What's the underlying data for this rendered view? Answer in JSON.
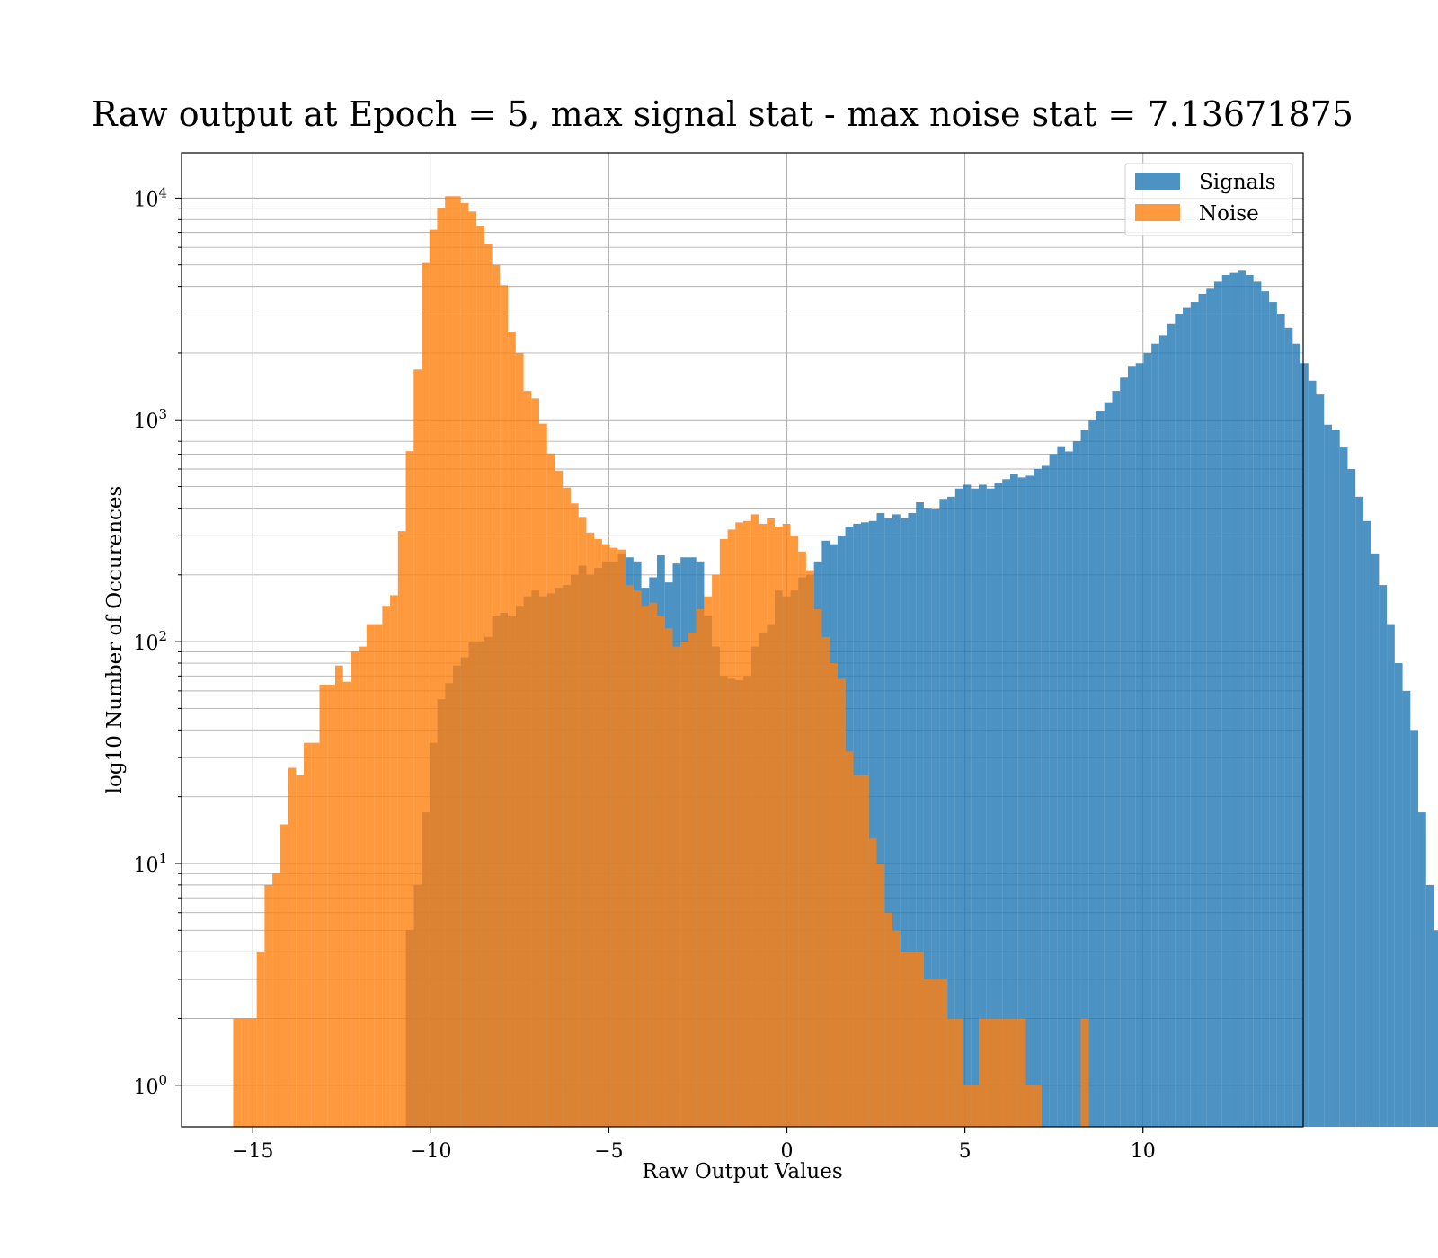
{
  "chart_data": {
    "type": "bar",
    "title": "Raw output at Epoch = 5, max signal stat - max noise stat = 7.13671875",
    "xlabel": "Raw Output Values",
    "ylabel": "log10 Number of Occurences",
    "xlim": [
      -17,
      14.5
    ],
    "ylim": [
      0.65,
      16000
    ],
    "yscale": "log",
    "grid": true,
    "legend_position": "top-right",
    "xticks": [
      "−15",
      "−10",
      "−5",
      "0",
      "5",
      "10"
    ],
    "xtick_values": [
      -15,
      -10,
      -5,
      0,
      5,
      10
    ],
    "yticks": [
      {
        "base": "10",
        "exp": "0",
        "value": 1
      },
      {
        "base": "10",
        "exp": "1",
        "value": 10
      },
      {
        "base": "10",
        "exp": "2",
        "value": 100
      },
      {
        "base": "10",
        "exp": "3",
        "value": 1000
      },
      {
        "base": "10",
        "exp": "4",
        "value": 10000
      }
    ],
    "series": [
      {
        "name": "Signals",
        "color": "#1f77b4",
        "opacity": 0.8,
        "bin_start": -10.7,
        "bin_width": 0.2204,
        "values": [
          5,
          8,
          17,
          35,
          55,
          65,
          78,
          85,
          100,
          100,
          105,
          130,
          135,
          130,
          145,
          160,
          170,
          160,
          165,
          175,
          180,
          200,
          220,
          200,
          215,
          230,
          230,
          250,
          240,
          230,
          175,
          195,
          245,
          185,
          225,
          240,
          240,
          230,
          130,
          95,
          70,
          68,
          67,
          70,
          95,
          110,
          120,
          170,
          160,
          170,
          195,
          200,
          230,
          285,
          275,
          300,
          330,
          340,
          345,
          350,
          380,
          360,
          375,
          360,
          380,
          425,
          400,
          395,
          440,
          450,
          490,
          510,
          490,
          510,
          490,
          520,
          540,
          570,
          550,
          560,
          600,
          620,
          700,
          760,
          720,
          800,
          900,
          1000,
          1100,
          1200,
          1350,
          1550,
          1750,
          1800,
          2000,
          2200,
          2400,
          2700,
          3000,
          3200,
          3400,
          3700,
          3900,
          4200,
          4500,
          4600,
          4700,
          4500,
          4200,
          3800,
          3400,
          3000,
          2600,
          2200,
          1800,
          1500,
          1300,
          950,
          900,
          750,
          600,
          450,
          350,
          250,
          180,
          120,
          80,
          60,
          40,
          17,
          8,
          5,
          3
        ]
      },
      {
        "name": "Noise",
        "color": "#ff7f0e",
        "opacity": 0.8,
        "bin_start": -15.55,
        "bin_width": 0.2204,
        "values": [
          2,
          2,
          2,
          4,
          8,
          9,
          15,
          27,
          25,
          35,
          35,
          64,
          64,
          78,
          66,
          90,
          95,
          120,
          120,
          145,
          162,
          315,
          722,
          1685,
          5100,
          7200,
          9000,
          10200,
          10200,
          9500,
          8700,
          7500,
          6200,
          5000,
          4050,
          2500,
          2000,
          1350,
          1250,
          960,
          705,
          590,
          495,
          420,
          365,
          310,
          290,
          275,
          265,
          260,
          180,
          170,
          145,
          150,
          130,
          115,
          95,
          100,
          110,
          140,
          160,
          200,
          290,
          320,
          345,
          350,
          375,
          340,
          360,
          330,
          340,
          300,
          255,
          210,
          140,
          105,
          80,
          68,
          32,
          25,
          25,
          13,
          10,
          6,
          5,
          4,
          4,
          4,
          3,
          3,
          3,
          2,
          2,
          1,
          1,
          2,
          2,
          2,
          2,
          2,
          2,
          1,
          1,
          0,
          0,
          0,
          0,
          0,
          2
        ]
      }
    ]
  },
  "legend": {
    "items": [
      {
        "label": "Signals",
        "color": "#1f77b4"
      },
      {
        "label": "Noise",
        "color": "#ff7f0e"
      }
    ]
  }
}
